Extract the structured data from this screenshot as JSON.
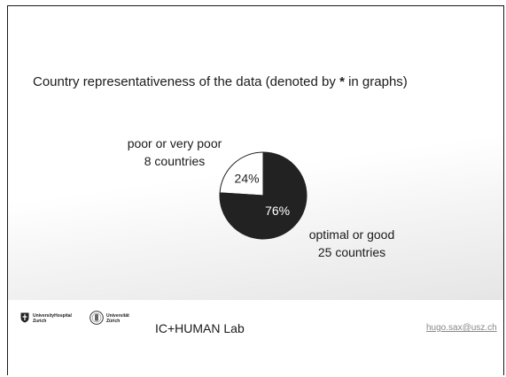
{
  "slide": {
    "title_prefix": "Country representativeness of the data (denoted by ",
    "title_star": "*",
    "title_suffix": " in graphs)"
  },
  "chart_data": {
    "type": "pie",
    "title": "",
    "slices": [
      {
        "label": "poor or very poor",
        "count_label": "8 countries",
        "value": 24,
        "percent_label": "24%",
        "color": "#ffffff"
      },
      {
        "label": "optimal or good",
        "count_label": "25 countries",
        "value": 76,
        "percent_label": "76%",
        "color": "#222222"
      }
    ]
  },
  "footer": {
    "logo1_line1": "UniversityHospital",
    "logo1_line2": "Zurich",
    "logo2_line1": "Universität",
    "logo2_line2": "Zürich",
    "lab_name": "IC+HUMAN Lab",
    "email": "hugo.sax@usz.ch"
  }
}
